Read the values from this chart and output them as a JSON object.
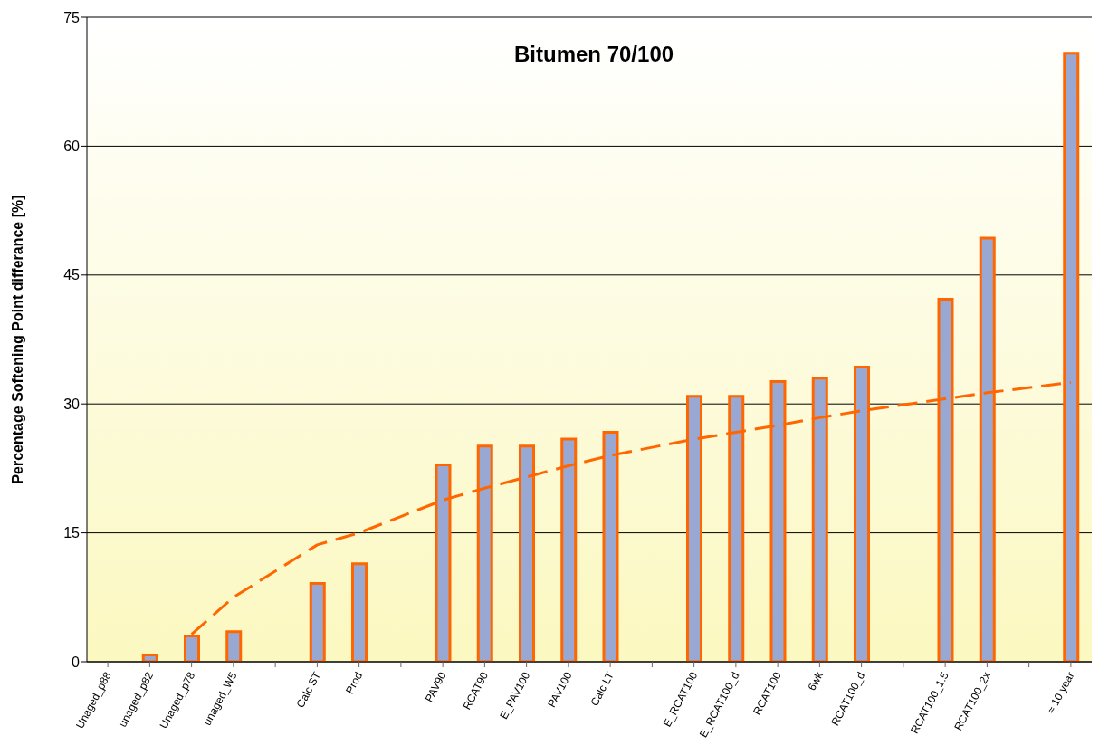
{
  "chart_data": {
    "type": "bar",
    "title": "Bitumen 70/100",
    "ylabel": "Percentage Softening Point differance [%]",
    "categories": [
      "Unaged_p88",
      "unaged_p82",
      "Unaged_p78",
      "unaged_W5",
      null,
      "Calc ST",
      "Prod",
      null,
      "PAV90",
      "RCAT90",
      "E_PAV100",
      "PAV100",
      "Calc LT",
      null,
      "E_RCAT100",
      "E_RCAT100_d",
      "RCAT100",
      "6wk",
      "RCAT100_d",
      null,
      "RCAT100_1.5",
      "RCAT100_2x",
      null,
      "≈ 10 year"
    ],
    "series": [
      {
        "color": "#98a8d2",
        "values": [
          0,
          0.8,
          3.0,
          3.5,
          null,
          9.1,
          11.4,
          null,
          22.9,
          25.1,
          25.1,
          25.9,
          26.7,
          null,
          30.9,
          30.9,
          32.6,
          33.0,
          34.3,
          null,
          42.2,
          49.3,
          null,
          70.8
        ]
      },
      {
        "type": "line",
        "color": "#ff6600",
        "line_style": "dashed",
        "x": [
          "Unaged_p78",
          "unaged_W5",
          "Calc ST",
          "Prod",
          "PAV90",
          "RCAT90",
          "E_PAV100",
          "PAV100",
          "Calc LT",
          "E_RCAT100",
          "E_RCAT100_d",
          "RCAT100",
          "6wk",
          "RCAT100_d",
          "RCAT100_1.5",
          "RCAT100_2x",
          "≈ 10 year"
        ],
        "values": [
          3.2,
          7.5,
          13.6,
          15.0,
          18.8,
          20.2,
          21.5,
          22.8,
          24.0,
          25.9,
          26.7,
          27.5,
          28.4,
          29.2,
          30.6,
          31.3,
          32.5
        ]
      }
    ],
    "ylim": [
      0,
      75
    ],
    "yticks": [
      0,
      15,
      30,
      45,
      60,
      75
    ],
    "grid": "y",
    "marker": "none"
  }
}
